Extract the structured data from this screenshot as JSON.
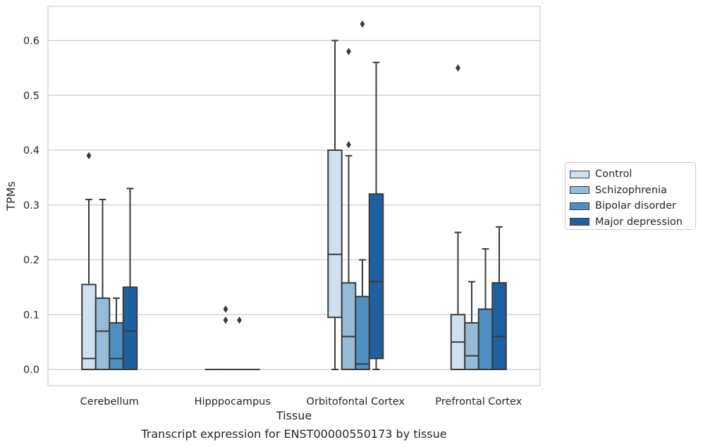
{
  "chart_data": {
    "type": "box",
    "caption": "Transcript expression for ENST00000550173 by tissue",
    "xlabel": "Tissue",
    "ylabel": "TPMs",
    "ylim": [
      -0.03,
      0.665
    ],
    "yticks": [
      "0.0",
      "0.1",
      "0.2",
      "0.3",
      "0.4",
      "0.5",
      "0.6"
    ],
    "ytick_values": [
      0.0,
      0.1,
      0.2,
      0.3,
      0.4,
      0.5,
      0.6
    ],
    "grid": true,
    "legend_position": "right",
    "categories": [
      "Cerebellum",
      "Hipppocampus",
      "Orbitofontal Cortex",
      "Prefrontal Cortex"
    ],
    "series": [
      {
        "name": "Control",
        "color": "#d0e0f0",
        "boxes": [
          {
            "whislo": 0.0,
            "q1": 0.0,
            "med": 0.02,
            "q3": 0.155,
            "whishi": 0.31,
            "fliers": [
              0.39
            ]
          },
          {
            "whislo": 0.0,
            "q1": 0.0,
            "med": 0.0,
            "q3": 0.0,
            "whishi": 0.0,
            "fliers": []
          },
          {
            "whislo": 0.0,
            "q1": 0.095,
            "med": 0.21,
            "q3": 0.4,
            "whishi": 0.6,
            "fliers": []
          },
          {
            "whislo": 0.0,
            "q1": 0.0,
            "med": 0.05,
            "q3": 0.1,
            "whishi": 0.25,
            "fliers": [
              0.55
            ]
          }
        ]
      },
      {
        "name": "Schizophrenia",
        "color": "#94bcd9",
        "boxes": [
          {
            "whislo": 0.0,
            "q1": 0.0,
            "med": 0.07,
            "q3": 0.13,
            "whishi": 0.31,
            "fliers": []
          },
          {
            "whislo": 0.0,
            "q1": 0.0,
            "med": 0.0,
            "q3": 0.0,
            "whishi": 0.0,
            "fliers": [
              0.11,
              0.09
            ]
          },
          {
            "whislo": 0.0,
            "q1": 0.0,
            "med": 0.06,
            "q3": 0.158,
            "whishi": 0.39,
            "fliers": [
              0.41,
              0.58
            ]
          },
          {
            "whislo": 0.0,
            "q1": 0.0,
            "med": 0.025,
            "q3": 0.085,
            "whishi": 0.16,
            "fliers": []
          }
        ]
      },
      {
        "name": "Bipolar disorder",
        "color": "#4f90c2",
        "boxes": [
          {
            "whislo": 0.0,
            "q1": 0.0,
            "med": 0.02,
            "q3": 0.085,
            "whishi": 0.13,
            "fliers": []
          },
          {
            "whislo": 0.0,
            "q1": 0.0,
            "med": 0.0,
            "q3": 0.0,
            "whishi": 0.0,
            "fliers": [
              0.09
            ]
          },
          {
            "whislo": 0.0,
            "q1": 0.0,
            "med": 0.01,
            "q3": 0.133,
            "whishi": 0.2,
            "fliers": [
              0.63
            ]
          },
          {
            "whislo": 0.0,
            "q1": 0.0,
            "med": 0.0,
            "q3": 0.11,
            "whishi": 0.22,
            "fliers": []
          }
        ]
      },
      {
        "name": "Major depression",
        "color": "#1f60a0",
        "boxes": [
          {
            "whislo": 0.0,
            "q1": 0.0,
            "med": 0.07,
            "q3": 0.15,
            "whishi": 0.33,
            "fliers": []
          },
          {
            "whislo": 0.0,
            "q1": 0.0,
            "med": 0.0,
            "q3": 0.0,
            "whishi": 0.0,
            "fliers": []
          },
          {
            "whislo": 0.0,
            "q1": 0.02,
            "med": 0.16,
            "q3": 0.32,
            "whishi": 0.56,
            "fliers": []
          },
          {
            "whislo": 0.0,
            "q1": 0.0,
            "med": 0.06,
            "q3": 0.158,
            "whishi": 0.26,
            "fliers": []
          }
        ]
      }
    ]
  }
}
